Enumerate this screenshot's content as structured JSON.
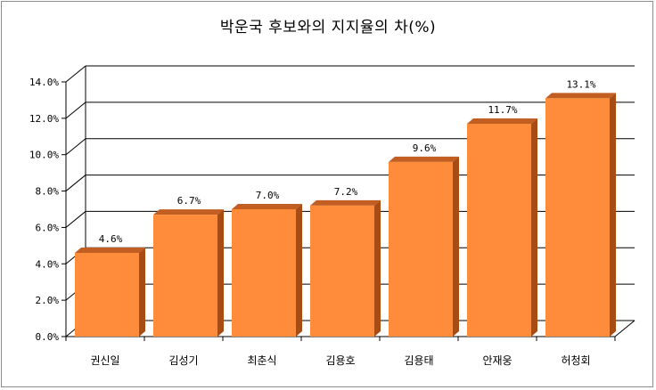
{
  "chart_data": {
    "type": "bar",
    "title": "박운국 후보와의 지지율의 차(%)",
    "categories": [
      "권신일",
      "김성기",
      "최춘식",
      "김용호",
      "김용태",
      "안재웅",
      "허청회"
    ],
    "values": [
      4.6,
      6.7,
      7.0,
      7.2,
      9.6,
      11.7,
      13.1
    ],
    "data_labels": [
      "4.6%",
      "6.7%",
      "7.0%",
      "7.2%",
      "9.6%",
      "11.7%",
      "13.1%"
    ],
    "y_ticks": [
      "0.0%",
      "2.0%",
      "4.0%",
      "6.0%",
      "8.0%",
      "10.0%",
      "12.0%",
      "14.0%"
    ],
    "ylim": [
      0,
      14
    ],
    "grid": true,
    "colors": {
      "bar_front": "#ff8c3a",
      "bar_side": "#a84c14",
      "bar_top": "#c25e22",
      "grid": "#000000"
    }
  }
}
